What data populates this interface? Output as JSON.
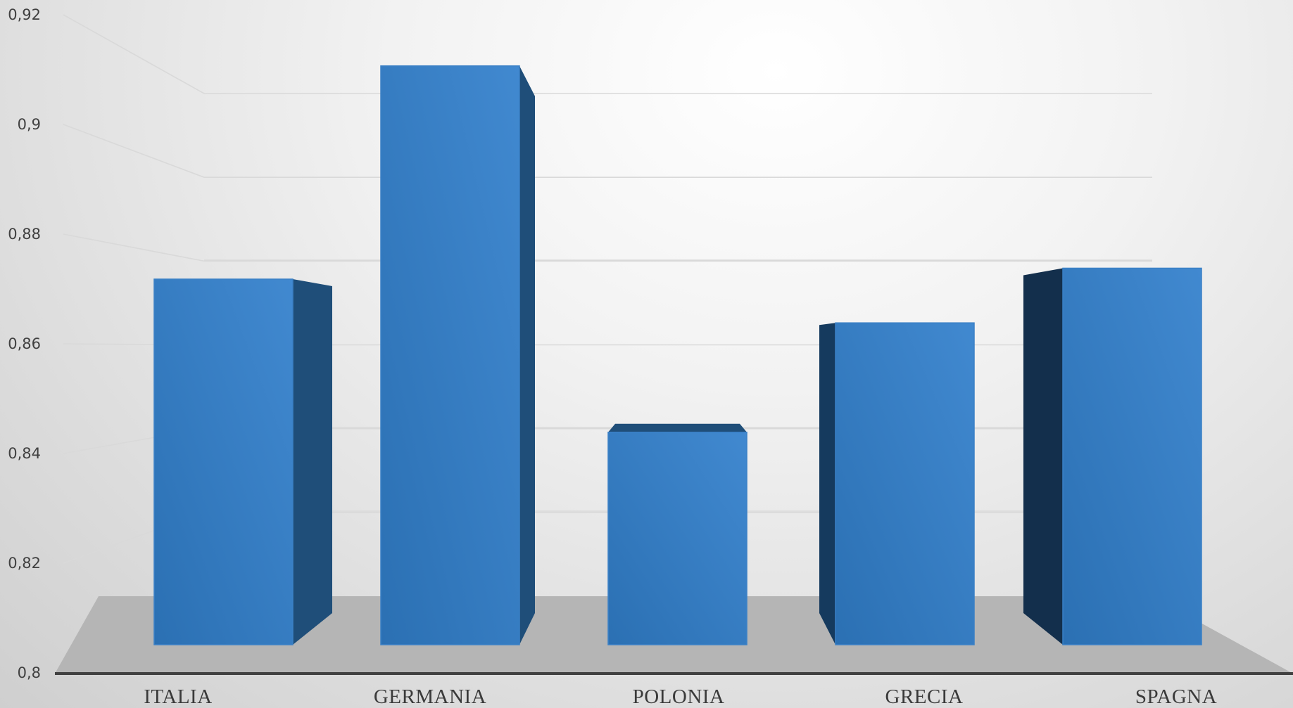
{
  "chart_data": {
    "type": "bar",
    "style": "3d-column",
    "categories": [
      "ITALIA",
      "GERMANIA",
      "POLONIA",
      "GRECIA",
      "SPAGNA"
    ],
    "values": [
      0.872,
      0.911,
      0.844,
      0.864,
      0.874
    ],
    "title": "",
    "xlabel": "",
    "ylabel": "",
    "ylim": [
      0.8,
      0.92
    ],
    "yticks": [
      "0,92",
      "0,9",
      "0,88",
      "0,86",
      "0,84",
      "0,82",
      "0,8"
    ],
    "grid": true,
    "legend": "none",
    "colors": {
      "bar_front": "#2e74b5",
      "bar_front_light": "#3f87cc",
      "bar_side": "#1f4e79",
      "bar_side_dark": "#132f4c",
      "floor": "#b5b5b5",
      "gridline": "#d9d9d9",
      "axis_line": "#404040"
    }
  }
}
